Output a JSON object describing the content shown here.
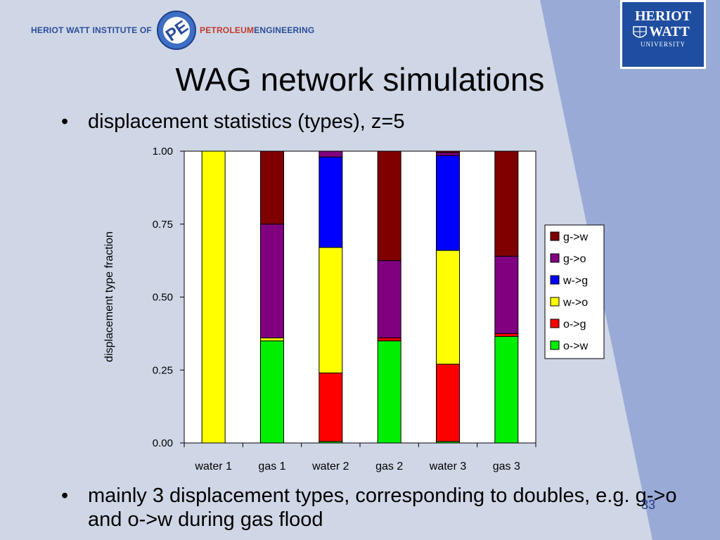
{
  "header": {
    "logo_left": "HERIOT WATT INSTITUTE OF",
    "logo_right_accent": "PETROLEUM",
    "logo_right": "ENGINEERING",
    "logo_right_line1": "HERIOT",
    "logo_right_line2": "WATT",
    "logo_right_line3": "UNIVERSITY"
  },
  "slide": {
    "title": "WAG network simulations",
    "bullet1": "displacement statistics (types), z=5",
    "bullet2": "mainly 3 displacement types, corresponding to doubles, e.g. g->o and o->w during gas flood",
    "bullet_symbol": "•",
    "page_number": "33"
  },
  "colors": {
    "background": "#cfd6e6",
    "accent_band": "#9aaad6",
    "brand_blue": "#1f4ea0"
  },
  "chart_data": {
    "type": "bar",
    "stacked": true,
    "categories": [
      "water 1",
      "gas 1",
      "water 2",
      "gas 2",
      "water 3",
      "gas 3"
    ],
    "series": [
      {
        "name": "o->w",
        "color": "#00ee00",
        "values": [
          0.0,
          0.35,
          0.005,
          0.35,
          0.005,
          0.365
        ]
      },
      {
        "name": "o->g",
        "color": "#ff0000",
        "values": [
          0.0,
          0.0,
          0.235,
          0.01,
          0.265,
          0.01
        ]
      },
      {
        "name": "w->o",
        "color": "#ffff00",
        "values": [
          1.0,
          0.01,
          0.43,
          0.0,
          0.39,
          0.0
        ]
      },
      {
        "name": "w->g",
        "color": "#0000ff",
        "values": [
          0.0,
          0.0,
          0.31,
          0.0,
          0.325,
          0.0
        ]
      },
      {
        "name": "g->o",
        "color": "#800080",
        "values": [
          0.0,
          0.39,
          0.02,
          0.265,
          0.01,
          0.265
        ]
      },
      {
        "name": "g->w",
        "color": "#800000",
        "values": [
          0.0,
          0.25,
          0.0,
          0.375,
          0.005,
          0.36
        ]
      }
    ],
    "legend_order": [
      "g->w",
      "g->o",
      "w->g",
      "w->o",
      "o->g",
      "o->w"
    ],
    "yticks": [
      "0.00",
      "0.25",
      "0.50",
      "0.75",
      "1.00"
    ],
    "ylim": [
      0,
      1
    ],
    "xlabel": "",
    "ylabel": "displacement type fraction",
    "title": "",
    "legend_position": "right",
    "grid": false
  }
}
